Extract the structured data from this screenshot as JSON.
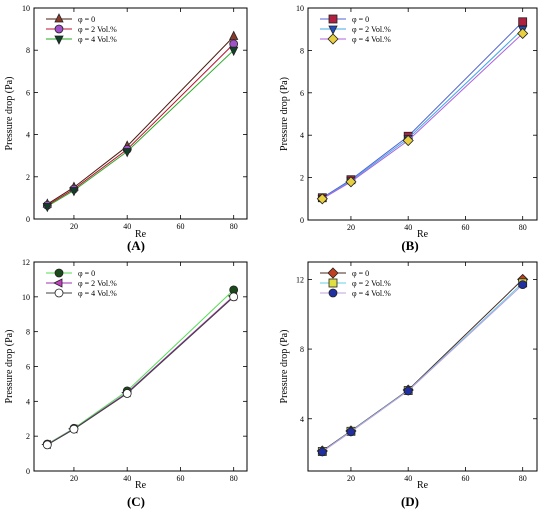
{
  "chart_data": [
    {
      "type": "line",
      "panel_label": "(A)",
      "xlabel": "Re",
      "ylabel": "Pressure drop (Pa)",
      "xlim": [
        5,
        85
      ],
      "ylim": [
        0,
        10
      ],
      "xticks": [
        "20",
        "40",
        "60",
        "80"
      ],
      "yticks": [
        "0",
        "2",
        "4",
        "6",
        "8",
        "10"
      ],
      "x": [
        10,
        20,
        40,
        80
      ],
      "legend_position": "top-left",
      "series": [
        {
          "name": "φ = 0",
          "values": [
            0.7,
            1.5,
            3.45,
            8.65
          ],
          "color": "#8b3a2a",
          "marker": "triangle-up",
          "line_color": "#4a1c10"
        },
        {
          "name": "φ = 2 Vol.%",
          "values": [
            0.65,
            1.42,
            3.3,
            8.3
          ],
          "color": "#a050c8",
          "marker": "circle",
          "line_color": "#c01030"
        },
        {
          "name": "φ = 4 Vol.%",
          "values": [
            0.6,
            1.35,
            3.2,
            8.0
          ],
          "color": "#104028",
          "marker": "triangle-down",
          "line_color": "#22aa22"
        }
      ]
    },
    {
      "type": "line",
      "panel_label": "(B)",
      "xlabel": "Re",
      "ylabel": "Pressure drop (Pa)",
      "xlim": [
        5,
        85
      ],
      "ylim": [
        0,
        10
      ],
      "xticks": [
        "20",
        "40",
        "60",
        "80"
      ],
      "yticks": [
        "0",
        "2",
        "4",
        "6",
        "8",
        "10"
      ],
      "x": [
        10,
        20,
        40,
        80
      ],
      "legend_position": "top-left",
      "series": [
        {
          "name": "φ = 0",
          "values": [
            1.05,
            1.9,
            3.95,
            9.35
          ],
          "color": "#b02040",
          "marker": "square",
          "line_color": "#5060d0"
        },
        {
          "name": "φ = 2 Vol.%",
          "values": [
            1.02,
            1.85,
            3.85,
            9.0
          ],
          "color": "#2050c0",
          "marker": "triangle-down",
          "line_color": "#40a8e8"
        },
        {
          "name": "φ = 4 Vol.%",
          "values": [
            1.0,
            1.8,
            3.75,
            8.8
          ],
          "color": "#e8d040",
          "marker": "diamond",
          "line_color": "#b060e0"
        }
      ]
    },
    {
      "type": "line",
      "panel_label": "(C)",
      "xlabel": "Re",
      "ylabel": "Pressure drop (Pa)",
      "xlim": [
        5,
        85
      ],
      "ylim": [
        0,
        12
      ],
      "xticks": [
        "20",
        "40",
        "60",
        "80"
      ],
      "yticks": [
        "0",
        "2",
        "4",
        "6",
        "8",
        "10",
        "12"
      ],
      "x": [
        10,
        20,
        40,
        80
      ],
      "legend_position": "top-left",
      "series": [
        {
          "name": "φ = 0",
          "values": [
            1.55,
            2.45,
            4.6,
            10.4
          ],
          "color": "#1a4a1a",
          "marker": "circle",
          "line_color": "#55dd55"
        },
        {
          "name": "φ = 2 Vol.%",
          "values": [
            1.52,
            2.42,
            4.5,
            10.05
          ],
          "color": "#c040c0",
          "marker": "triangle-left",
          "line_color": "#a030b0"
        },
        {
          "name": "φ = 4 Vol.%",
          "values": [
            1.5,
            2.4,
            4.45,
            10.0
          ],
          "color": "#ffffff",
          "marker": "circle",
          "line_color": "#404040"
        }
      ]
    },
    {
      "type": "line",
      "panel_label": "(D)",
      "xlabel": "Re",
      "ylabel": "Pressure drop (Pa)",
      "xlim": [
        5,
        85
      ],
      "ylim": [
        1,
        13
      ],
      "xticks": [
        "20",
        "40",
        "60",
        "80"
      ],
      "yticks": [
        "4",
        "8",
        "12"
      ],
      "ytick_values": [
        4,
        8,
        12
      ],
      "x": [
        10,
        20,
        40,
        80
      ],
      "legend_position": "top-left",
      "series": [
        {
          "name": "φ = 0",
          "values": [
            2.15,
            3.3,
            5.65,
            12.0
          ],
          "color": "#c04020",
          "marker": "diamond",
          "line_color": "#4a2a20"
        },
        {
          "name": "φ = 2 Vol.%",
          "values": [
            2.12,
            3.28,
            5.62,
            11.8
          ],
          "color": "#e0e040",
          "marker": "square",
          "line_color": "#60d0e8"
        },
        {
          "name": "φ = 4 Vol.%",
          "values": [
            2.1,
            3.25,
            5.6,
            11.7
          ],
          "color": "#2030a0",
          "marker": "circle",
          "line_color": "#c0a0e0"
        }
      ]
    }
  ]
}
